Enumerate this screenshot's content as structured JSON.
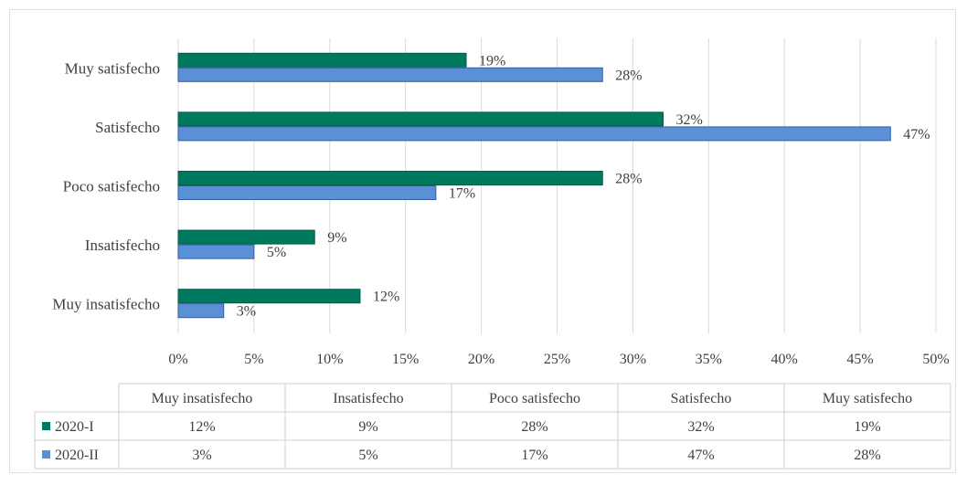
{
  "chart_data": {
    "type": "bar",
    "orientation": "horizontal",
    "categories": [
      "Muy insatisfecho",
      "Insatisfecho",
      "Poco satisfecho",
      "Satisfecho",
      "Muy satisfecho"
    ],
    "series": [
      {
        "name": "2020-I",
        "values": [
          12,
          9,
          28,
          32,
          19
        ],
        "color": "#007a5e"
      },
      {
        "name": "2020-II",
        "values": [
          3,
          5,
          17,
          47,
          28
        ],
        "color": "#5b8fd6"
      }
    ],
    "xlim": [
      0,
      50
    ],
    "x_ticks": [
      "0%",
      "5%",
      "10%",
      "15%",
      "20%",
      "25%",
      "30%",
      "35%",
      "40%",
      "45%",
      "50%"
    ],
    "value_suffix": "%",
    "grid": "vertical",
    "data_table": true
  }
}
